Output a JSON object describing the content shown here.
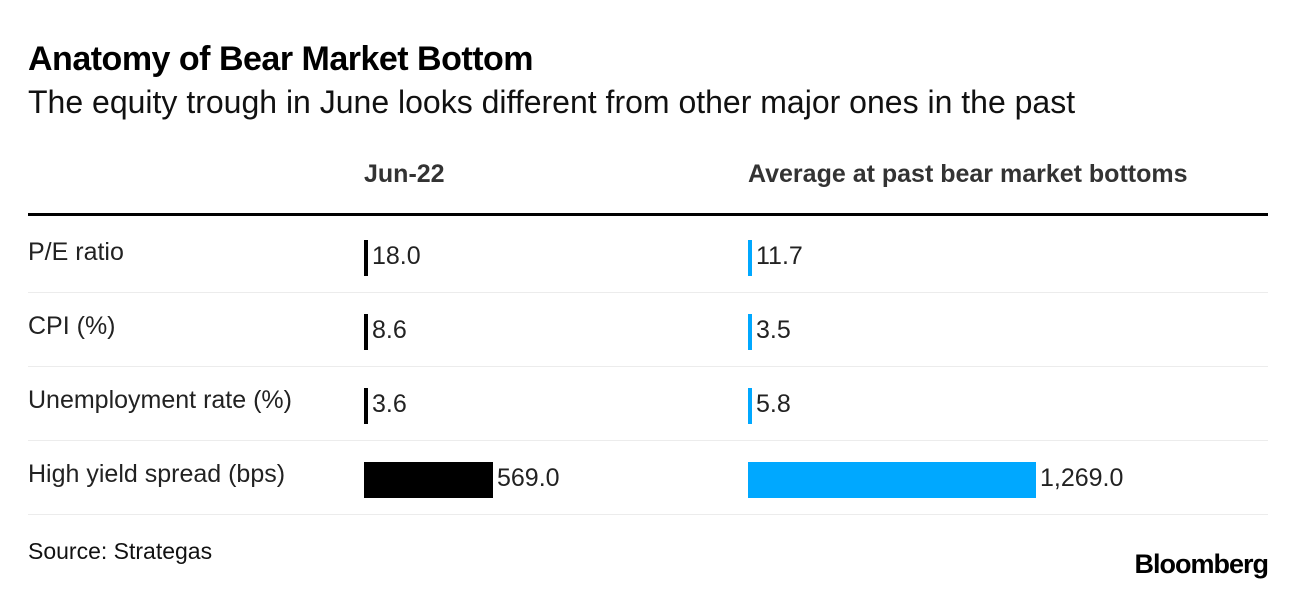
{
  "chart_data": {
    "type": "bar",
    "title": "Anatomy of Bear Market Bottom",
    "subtitle": "The equity trough in June looks different from other major ones in the past",
    "categories": [
      "P/E ratio",
      "CPI (%)",
      "Unemployment rate (%)",
      "High yield spread (bps)"
    ],
    "series": [
      {
        "name": "Jun-22",
        "color": "#000000",
        "values": [
          18.0,
          8.6,
          3.6,
          569.0
        ],
        "labels": [
          "18.0",
          "8.6",
          "3.6",
          "569.0"
        ]
      },
      {
        "name": "Average at past bear market bottoms",
        "color": "#00a8ff",
        "values": [
          11.7,
          3.5,
          5.8,
          1269.0
        ],
        "labels": [
          "11.7",
          "3.5",
          "5.8",
          "1,269.0"
        ]
      }
    ],
    "xlim": [
      0,
      1269
    ],
    "source": "Source: Strategas"
  },
  "branding": {
    "logo": "Bloomberg"
  }
}
